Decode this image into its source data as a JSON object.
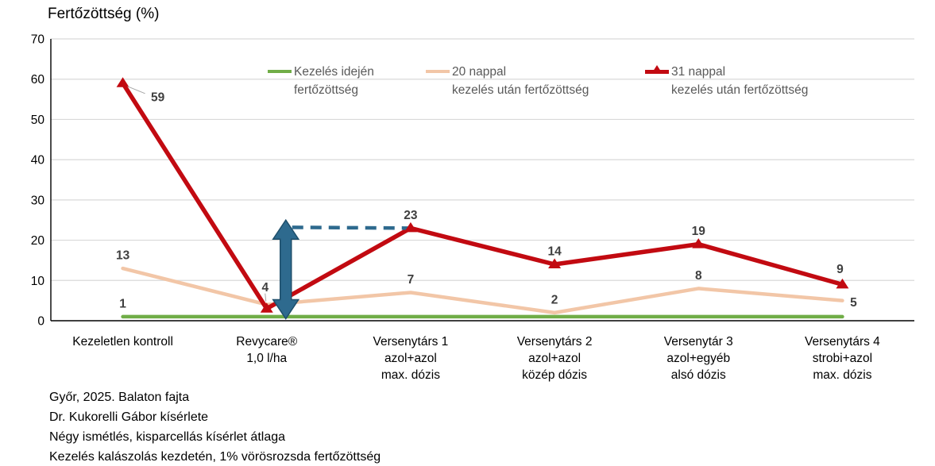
{
  "chart_data": {
    "type": "line",
    "title": "Fertőzöttség (%)",
    "ylim": [
      0,
      70
    ],
    "yticks": [
      0,
      10,
      20,
      30,
      40,
      50,
      60,
      70
    ],
    "grid": true,
    "legend_position": "top-inside",
    "category_lines": [
      [
        "Kezeletlen kontroll"
      ],
      [
        "Revycare®",
        "1,0 l/ha"
      ],
      [
        "Versenytárs 1",
        "azol+azol",
        "max. dózis"
      ],
      [
        "Versenytárs 2",
        "azol+azol",
        "közép dózis"
      ],
      [
        "Versenytár 3",
        "azol+egyéb",
        "alsó dózis"
      ],
      [
        "Versenytárs 4",
        "strobi+azol",
        "max. dózis"
      ]
    ],
    "series": [
      {
        "name": "Kezelés idején fertőzöttség",
        "color": "#70AD47",
        "values": [
          1,
          1,
          1,
          1,
          1,
          1
        ],
        "point_labels": [
          "1",
          "",
          "",
          "",
          "",
          ""
        ],
        "marker": "none"
      },
      {
        "name": "20 nappal kezelés után fertőzöttség",
        "color": "#F2C6A7",
        "values": [
          13,
          4,
          7,
          2,
          8,
          5
        ],
        "point_labels": [
          "13",
          "4",
          "7",
          "2",
          "8",
          "5"
        ],
        "marker": "none"
      },
      {
        "name": "31 nappal kezelés után fertőzöttség",
        "color": "#C20A11",
        "values": [
          59,
          3,
          23,
          14,
          19,
          9
        ],
        "point_labels": [
          "59",
          "",
          "23",
          "14",
          "19",
          "9"
        ],
        "marker": "triangle"
      }
    ],
    "annotation": {
      "kind": "difference-double-arrow",
      "color": "#2E6A8E",
      "at_category_index": 1,
      "span_values": [
        0.5,
        25
      ],
      "dashed_line_value": 23,
      "dashed_line_to_category_index": 2
    }
  },
  "legend": {
    "items": [
      {
        "lines": [
          "Kezelés idején",
          "fertőzöttség"
        ],
        "color": "#70AD47",
        "marker": "line"
      },
      {
        "lines": [
          "20 nappal",
          "kezelés után fertőzöttség"
        ],
        "color": "#F2C6A7",
        "marker": "line"
      },
      {
        "lines": [
          "31 nappal",
          "kezelés után fertőzöttség"
        ],
        "color": "#C20A11",
        "marker": "line-triangle"
      }
    ]
  },
  "footer": {
    "lines": [
      "Győr, 2025. Balaton fajta",
      "Dr. Kukorelli Gábor kísérlete",
      "Négy ismétlés, kisparcellás kísérlet átlaga",
      "Kezelés kalászolás kezdetén, 1% vörösrozsda fertőzöttség"
    ]
  },
  "colors": {
    "grid": "#D9D9D9",
    "axis": "#000000",
    "data_label": "#3F3F3F",
    "legend_text": "#595959",
    "leader_line": "#A6A6A6"
  }
}
